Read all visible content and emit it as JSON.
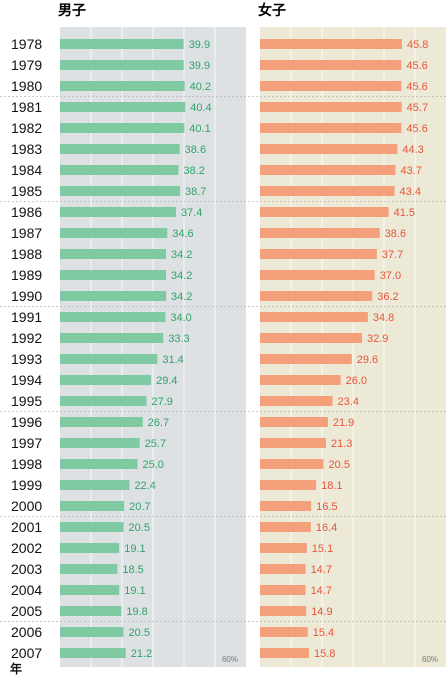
{
  "chart_data": {
    "type": "bar",
    "orientation": "horizontal",
    "categories": [
      "1978",
      "1979",
      "1980",
      "1981",
      "1982",
      "1983",
      "1984",
      "1985",
      "1986",
      "1987",
      "1988",
      "1989",
      "1990",
      "1991",
      "1992",
      "1993",
      "1994",
      "1995",
      "1996",
      "1997",
      "1998",
      "1999",
      "2000",
      "2001",
      "2002",
      "2003",
      "2004",
      "2005",
      "2006",
      "2007"
    ],
    "series": [
      {
        "name": "男子",
        "color": "#7fcaa3",
        "label_color": "#2fa46a",
        "panel_bg": "#dde1e3",
        "values": [
          39.9,
          39.9,
          40.2,
          40.4,
          40.1,
          38.6,
          38.2,
          38.7,
          37.4,
          34.6,
          34.2,
          34.2,
          34.2,
          34.0,
          33.3,
          31.4,
          29.4,
          27.9,
          26.7,
          25.7,
          25.0,
          22.4,
          20.7,
          20.5,
          19.1,
          18.5,
          19.1,
          19.8,
          20.5,
          21.2
        ],
        "labels": [
          "39.9",
          "39.9",
          "40.2",
          "40.4",
          "40.1",
          "38.6",
          "38.2",
          "38.7",
          "37.4",
          "34.6",
          "34.2",
          "34.2",
          "34.2",
          "34.0",
          "33.3",
          "31.4",
          "29.4",
          "27.9",
          "26.7",
          "25.7",
          "25.0",
          "22.4",
          "20.7",
          "20.5",
          "19.1",
          "18.5",
          "19.1",
          "19.8",
          "20.5",
          "21.2"
        ]
      },
      {
        "name": "女子",
        "color": "#f4a07a",
        "label_color": "#e8553b",
        "panel_bg": "#ecead6",
        "values": [
          45.8,
          45.6,
          45.6,
          45.7,
          45.6,
          44.3,
          43.7,
          43.4,
          41.5,
          38.6,
          37.7,
          37.0,
          36.2,
          34.8,
          32.9,
          29.6,
          26.0,
          23.4,
          21.9,
          21.3,
          20.5,
          18.1,
          16.5,
          16.4,
          15.1,
          14.7,
          14.7,
          14.9,
          15.4,
          15.8
        ],
        "labels": [
          "45.8",
          "45.6",
          "45.6",
          "45.7",
          "45.6",
          "44.3",
          "43.7",
          "43.4",
          "41.5",
          "38.6",
          "37.7",
          "37.0",
          "36.2",
          "34.8",
          "32.9",
          "29.6",
          "26.0",
          "23.4",
          "21.9",
          "21.3",
          "20.5",
          "18.1",
          "16.5",
          "16.4",
          "15.1",
          "14.7",
          "14.7",
          "14.9",
          "15.4",
          "15.8"
        ]
      }
    ],
    "xlim": [
      0,
      60
    ],
    "xticks": [
      0,
      10,
      20,
      30,
      40,
      50
    ],
    "max_tick_label": "60%",
    "grid": true,
    "row_group_size": 5,
    "row_group_start": 3,
    "ylabel": "年"
  }
}
